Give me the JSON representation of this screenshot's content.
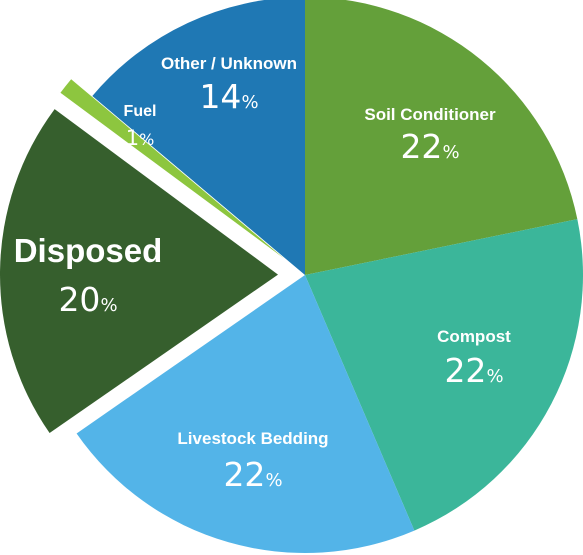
{
  "chart_data": {
    "type": "pie",
    "title": "",
    "slices": [
      {
        "label": "Soil Conditioner",
        "value": 22,
        "display": "22",
        "unit": "%",
        "color": "#64a03a",
        "exploded": false,
        "highlight": false
      },
      {
        "label": "Compost",
        "value": 22,
        "display": "22",
        "unit": "%",
        "color": "#3bb69a",
        "exploded": false,
        "highlight": false
      },
      {
        "label": "Livestock Bedding",
        "value": 22,
        "display": "22",
        "unit": "%",
        "color": "#53b4e8",
        "exploded": false,
        "highlight": false
      },
      {
        "label": "Disposed",
        "value": 20,
        "display": "20",
        "unit": "%",
        "color": "#365f2d",
        "exploded": true,
        "highlight": true,
        "text_color": "#f0eb32"
      },
      {
        "label": "Fuel",
        "value": 1,
        "display": "1",
        "unit": "%",
        "color": "#8dc63f",
        "exploded": true,
        "highlight": false
      },
      {
        "label": "Other / Unknown",
        "value": 14,
        "display": "14",
        "unit": "%",
        "color": "#1f78b4",
        "exploded": false,
        "highlight": false
      }
    ]
  }
}
